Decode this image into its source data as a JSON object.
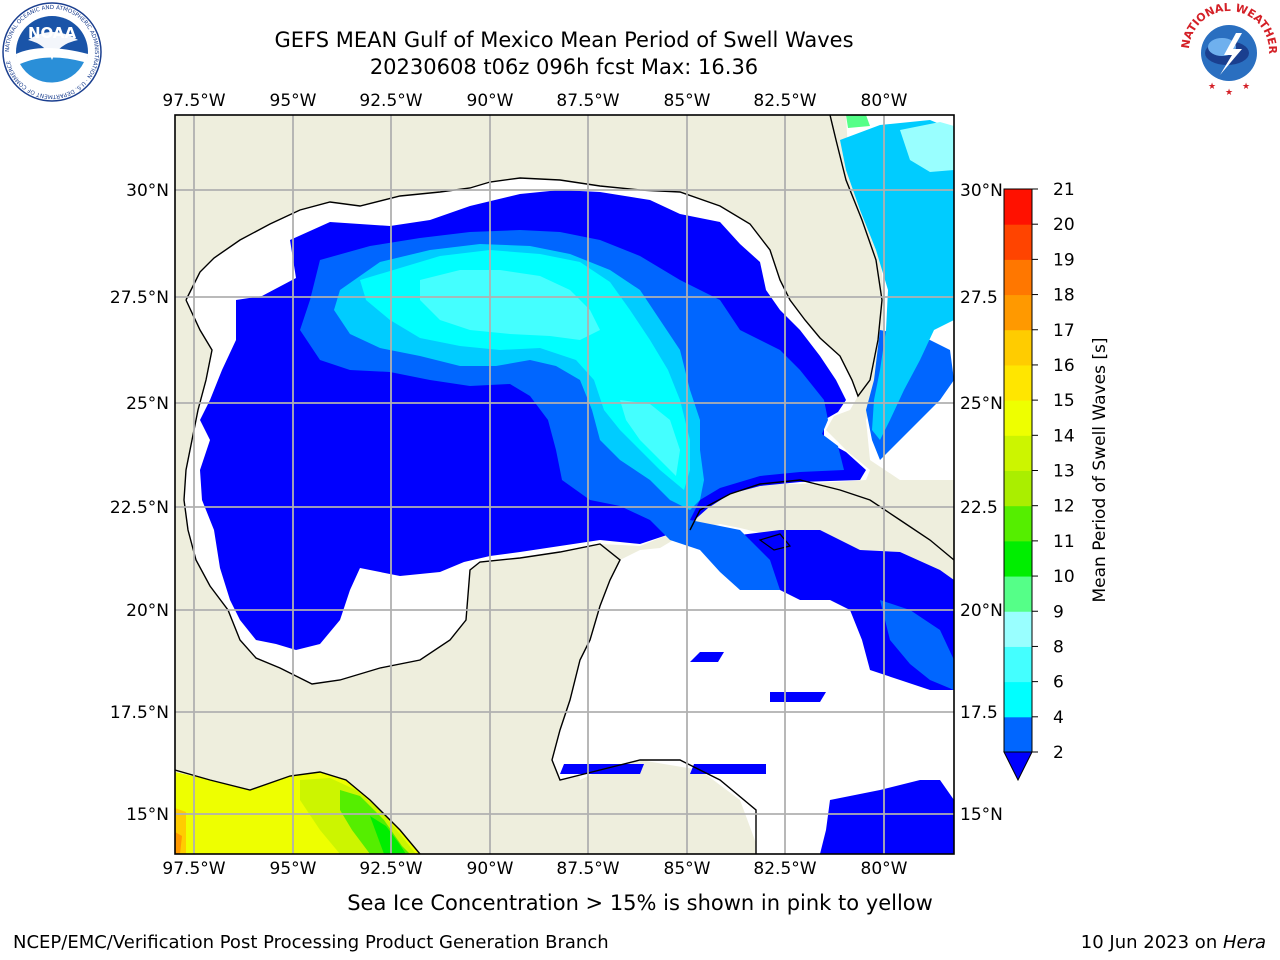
{
  "header": {
    "title_line1": "GEFS MEAN Gulf of Mexico Mean Period of Swell Waves",
    "title_line2": "20230608 t06z 096h fcst   Max: 16.36"
  },
  "map": {
    "lon_ticks": [
      "97.5°W",
      "95°W",
      "92.5°W",
      "90°W",
      "87.5°W",
      "85°W",
      "82.5°W",
      "80°W"
    ],
    "lat_ticks_left": [
      "30°N",
      "27.5°N",
      "25°N",
      "22.5°N",
      "20°N",
      "17.5°N",
      "15°N"
    ],
    "lat_ticks_right": [
      "30°N",
      "27.5",
      "25°N",
      "22.5",
      "20°N",
      "17.5",
      "15°N"
    ],
    "colors": {
      "land": "#eeeedd",
      "no_data": "#ffffff",
      "grid": "#b0b0b0"
    }
  },
  "colorbar": {
    "label": "Mean Period of Swell Waves [s]",
    "ticks": [
      "2",
      "4",
      "6",
      "8",
      "9",
      "10",
      "11",
      "12",
      "13",
      "14",
      "15",
      "16",
      "17",
      "18",
      "19",
      "20",
      "21"
    ],
    "colors": [
      "#0066ff",
      "#00ccff",
      "#00ffff",
      "#44ffff",
      "#99ffff",
      "#55ff88",
      "#00ee00",
      "#55ee00",
      "#aaee00",
      "#ccf500",
      "#eeff00",
      "#ffe600",
      "#ffcc00",
      "#ff9900",
      "#ff7700",
      "#ff4400",
      "#ff1100"
    ],
    "under_color": "#0000ff"
  },
  "footer": {
    "sea_ice_note": "Sea Ice Concentration > 15% is shown in pink to yellow",
    "credit": "NCEP/EMC/Verification Post Processing Product Generation Branch",
    "date": "10 Jun 2023 on ",
    "machine": "Hera"
  },
  "logos": {
    "noaa": "NOAA",
    "noaa_ring": "NATIONAL OCEANIC AND ATMOSPHERIC ADMINISTRATION · U.S. DEPARTMENT OF COMMERCE",
    "nws_ring": "NATIONAL WEATHER SERVICE"
  }
}
